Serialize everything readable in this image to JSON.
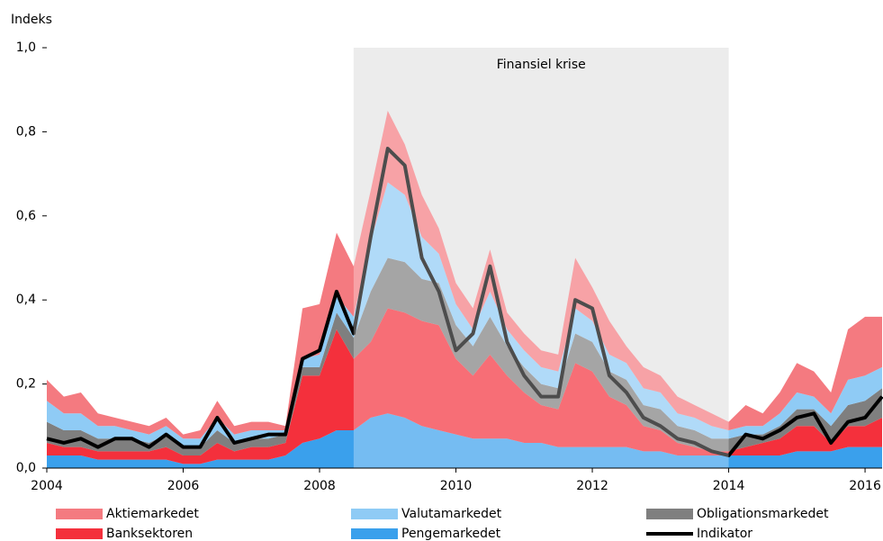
{
  "chart_data": {
    "type": "stacked_area",
    "ylabel": "Indeks",
    "xlim": [
      2004,
      2016.25
    ],
    "xticks": [
      2004,
      2006,
      2008,
      2010,
      2012,
      2014,
      2016
    ],
    "ylim": [
      0,
      1
    ],
    "yticks": [
      {
        "value": 0,
        "label": "0,0"
      },
      {
        "value": 0.2,
        "label": "0,2"
      },
      {
        "value": 0.4,
        "label": "0,4"
      },
      {
        "value": 0.6,
        "label": "0,6"
      },
      {
        "value": 0.8,
        "label": "0,8"
      },
      {
        "value": 1,
        "label": "1,0"
      }
    ],
    "shaded": {
      "label": "Finansiel krise",
      "xlim": [
        2008.5,
        2014
      ],
      "color": "#e4e4e4"
    },
    "x": [
      2004,
      2004.25,
      2004.5,
      2004.75,
      2005,
      2005.25,
      2005.5,
      2005.75,
      2006,
      2006.25,
      2006.5,
      2006.75,
      2007,
      2007.25,
      2007.5,
      2007.75,
      2008,
      2008.25,
      2008.5,
      2008.75,
      2009,
      2009.25,
      2009.5,
      2009.75,
      2010,
      2010.25,
      2010.5,
      2010.75,
      2011,
      2011.25,
      2011.5,
      2011.75,
      2012,
      2012.25,
      2012.5,
      2012.75,
      2013,
      2013.25,
      2013.5,
      2013.75,
      2014,
      2014.25,
      2014.5,
      2014.75,
      2015,
      2015.25,
      2015.5,
      2015.75,
      2016,
      2016.25
    ],
    "series": [
      {
        "name": "Pengemarkedet",
        "type": "area",
        "color": "#3aa0ec",
        "values": [
          0.03,
          0.03,
          0.03,
          0.02,
          0.02,
          0.02,
          0.02,
          0.02,
          0.01,
          0.01,
          0.02,
          0.02,
          0.02,
          0.02,
          0.03,
          0.06,
          0.07,
          0.09,
          0.09,
          0.12,
          0.13,
          0.12,
          0.1,
          0.09,
          0.08,
          0.07,
          0.07,
          0.07,
          0.06,
          0.06,
          0.05,
          0.05,
          0.05,
          0.05,
          0.05,
          0.04,
          0.04,
          0.03,
          0.03,
          0.03,
          0.03,
          0.03,
          0.03,
          0.03,
          0.04,
          0.04,
          0.04,
          0.05,
          0.05,
          0.05
        ]
      },
      {
        "name": "Banksektoren",
        "type": "area",
        "color": "#f4303c",
        "values": [
          0.03,
          0.02,
          0.02,
          0.02,
          0.02,
          0.02,
          0.02,
          0.03,
          0.02,
          0.02,
          0.04,
          0.02,
          0.03,
          0.03,
          0.03,
          0.16,
          0.15,
          0.24,
          0.17,
          0.18,
          0.25,
          0.25,
          0.25,
          0.25,
          0.18,
          0.15,
          0.2,
          0.15,
          0.12,
          0.09,
          0.09,
          0.2,
          0.18,
          0.12,
          0.1,
          0.06,
          0.05,
          0.03,
          0.02,
          0.01,
          0.01,
          0.02,
          0.03,
          0.04,
          0.06,
          0.06,
          0.02,
          0.05,
          0.05,
          0.07
        ]
      },
      {
        "name": "Obligationsmarkedet",
        "type": "area",
        "color": "#7f7f7f",
        "values": [
          0.05,
          0.04,
          0.04,
          0.03,
          0.03,
          0.03,
          0.02,
          0.03,
          0.02,
          0.02,
          0.03,
          0.02,
          0.02,
          0.02,
          0.02,
          0.02,
          0.02,
          0.04,
          0.05,
          0.12,
          0.12,
          0.12,
          0.1,
          0.1,
          0.08,
          0.07,
          0.09,
          0.07,
          0.06,
          0.05,
          0.05,
          0.07,
          0.07,
          0.06,
          0.06,
          0.05,
          0.05,
          0.04,
          0.04,
          0.03,
          0.03,
          0.03,
          0.02,
          0.03,
          0.04,
          0.04,
          0.04,
          0.05,
          0.06,
          0.07
        ]
      },
      {
        "name": "Valutamarkedet",
        "type": "area",
        "color": "#8fcbf5",
        "values": [
          0.05,
          0.04,
          0.04,
          0.03,
          0.03,
          0.02,
          0.02,
          0.02,
          0.02,
          0.02,
          0.03,
          0.02,
          0.02,
          0.02,
          0.01,
          0.02,
          0.03,
          0.04,
          0.05,
          0.12,
          0.18,
          0.16,
          0.1,
          0.07,
          0.05,
          0.04,
          0.06,
          0.04,
          0.04,
          0.04,
          0.04,
          0.06,
          0.05,
          0.04,
          0.04,
          0.04,
          0.04,
          0.03,
          0.03,
          0.03,
          0.02,
          0.02,
          0.02,
          0.03,
          0.04,
          0.03,
          0.03,
          0.06,
          0.06,
          0.05
        ]
      },
      {
        "name": "Aktiemarkedet",
        "type": "area",
        "color": "#f47a80",
        "values": [
          0.05,
          0.04,
          0.05,
          0.03,
          0.02,
          0.02,
          0.02,
          0.02,
          0.01,
          0.02,
          0.04,
          0.02,
          0.02,
          0.02,
          0.01,
          0.12,
          0.12,
          0.15,
          0.12,
          0.12,
          0.17,
          0.12,
          0.1,
          0.06,
          0.05,
          0.05,
          0.1,
          0.04,
          0.04,
          0.04,
          0.04,
          0.12,
          0.08,
          0.08,
          0.04,
          0.05,
          0.04,
          0.04,
          0.03,
          0.03,
          0.02,
          0.05,
          0.03,
          0.05,
          0.07,
          0.06,
          0.05,
          0.12,
          0.14,
          0.12
        ]
      },
      {
        "name": "Indikator",
        "type": "line",
        "color": "#000000",
        "values": [
          0.07,
          0.06,
          0.07,
          0.05,
          0.07,
          0.07,
          0.05,
          0.08,
          0.05,
          0.05,
          0.12,
          0.06,
          0.07,
          0.08,
          0.08,
          0.26,
          0.28,
          0.42,
          0.32,
          0.55,
          0.76,
          0.72,
          0.5,
          0.42,
          0.28,
          0.32,
          0.48,
          0.3,
          0.22,
          0.17,
          0.17,
          0.4,
          0.38,
          0.22,
          0.18,
          0.12,
          0.1,
          0.07,
          0.06,
          0.04,
          0.03,
          0.08,
          0.07,
          0.09,
          0.12,
          0.13,
          0.06,
          0.11,
          0.12,
          0.17
        ]
      }
    ]
  }
}
